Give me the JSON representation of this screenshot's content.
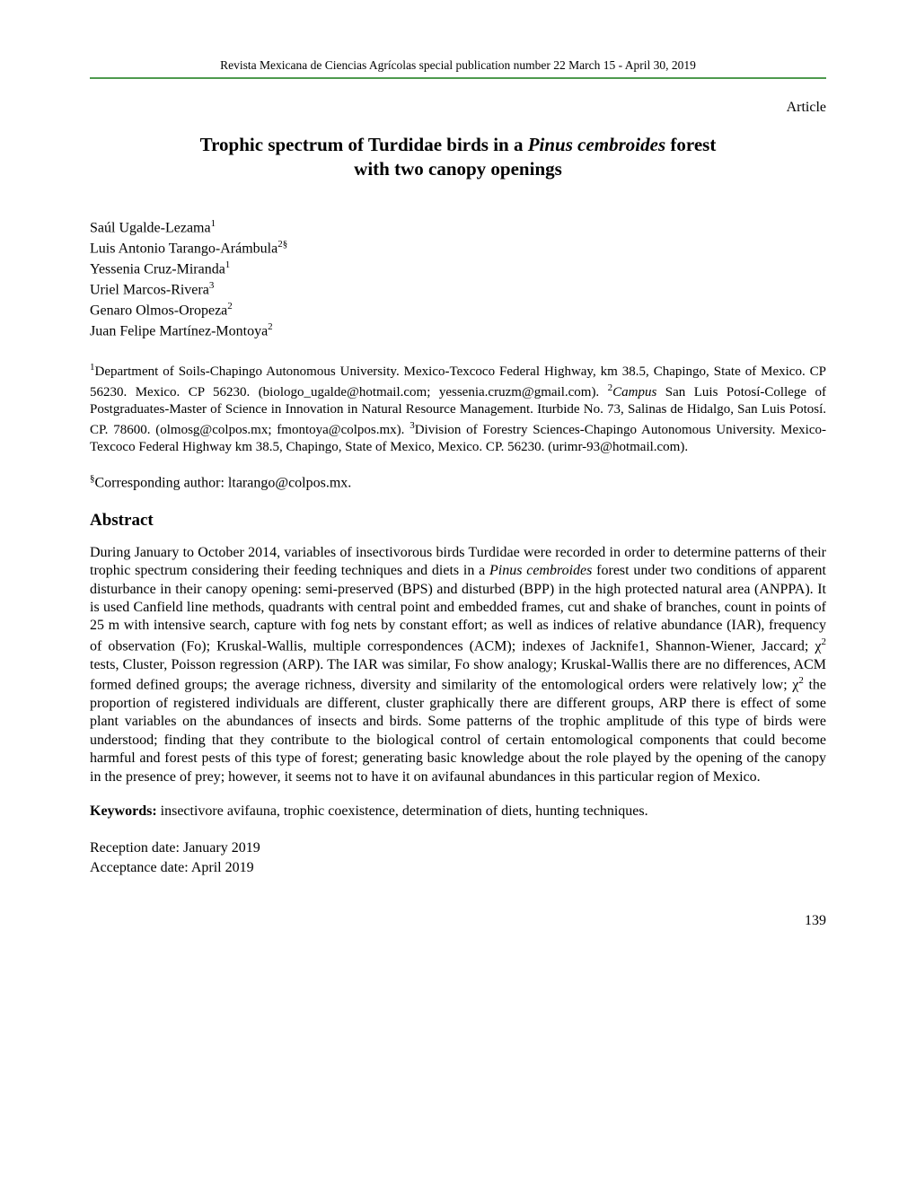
{
  "journal_header": "Revista Mexicana de Ciencias Agrícolas   special publication number 22   March 15 - April 30, 2019",
  "article_type": "Article",
  "title_line1": "Trophic spectrum of Turdidae birds in a ",
  "title_italic": "Pinus cembroides",
  "title_line1b": " forest",
  "title_line2": "with two canopy openings",
  "authors": [
    {
      "name": "Saúl Ugalde-Lezama",
      "sup": "1"
    },
    {
      "name": "Luis Antonio Tarango-Arámbula",
      "sup": "2§"
    },
    {
      "name": "Yessenia Cruz-Miranda",
      "sup": "1"
    },
    {
      "name": "Uriel Marcos-Rivera",
      "sup": "3"
    },
    {
      "name": "Genaro Olmos-Oropeza",
      "sup": "2"
    },
    {
      "name": "Juan Felipe Martínez-Montoya",
      "sup": "2"
    }
  ],
  "aff1_sup": "1",
  "aff1_text": "Department of Soils-Chapingo Autonomous University. Mexico-Texcoco Federal Highway, km 38.5, Chapingo, State of Mexico. CP 56230. Mexico. CP 56230. (biologo_ugalde@hotmail.com; yessenia.cruzm@gmail.com). ",
  "aff2_sup": "2",
  "aff2_italic": "Campus",
  "aff2_text": " San Luis Potosí-College of Postgraduates-Master of Science in Innovation in Natural Resource Management. Iturbide No. 73, Salinas de Hidalgo, San Luis Potosí. CP. 78600. (olmosg@colpos.mx; fmontoya@colpos.mx). ",
  "aff3_sup": "3",
  "aff3_text": "Division of Forestry Sciences-Chapingo Autonomous University. Mexico-Texcoco Federal Highway km 38.5, Chapingo, State of Mexico, Mexico. CP. 56230. (urimr-93@hotmail.com).",
  "corresponding_sup": "§",
  "corresponding_text": "Corresponding author: ltarango@colpos.mx.",
  "abstract_heading": "Abstract",
  "abstract_p1a": "During January to October 2014, variables of insectivorous birds Turdidae were recorded in order to determine patterns of their trophic spectrum considering their feeding techniques and diets in a ",
  "abstract_italic1": "Pinus cembroides",
  "abstract_p1b": " forest under two conditions of apparent disturbance in their canopy opening: semi-preserved (BPS) and disturbed (BPP) in the high protected natural area (ANPPA). It is used Canfield line methods, quadrants with central point and embedded frames, cut and shake of branches, count in points of 25 m with intensive search, capture with fog nets by constant effort; as well as indices of relative abundance (IAR), frequency of observation (Fo); Kruskal-Wallis, multiple correspondences (ACM); indexes of Jacknife1, Shannon-Wiener, Jaccard; χ",
  "abstract_sup1": "2",
  "abstract_p1c": " tests, Cluster, Poisson regression (ARP). The IAR was similar, Fo show analogy; Kruskal-Wallis there are no differences, ACM formed defined groups; the average richness, diversity and similarity of the entomological orders were relatively low; χ",
  "abstract_sup2": "2",
  "abstract_p1d": " the proportion of registered individuals are different, cluster graphically there are different groups, ARP there is effect of some plant variables on the abundances of insects and birds. Some patterns of the trophic amplitude of this type of birds were understood; finding that they contribute to the biological control of certain entomological components that could become harmful and forest pests of this type of forest; generating basic knowledge about the role played by the opening of the canopy in the presence of prey; however, it seems not to have it on avifaunal abundances in this particular region of Mexico.",
  "keywords_label": "Keywords:",
  "keywords_text": " insectivore avifauna, trophic coexistence, determination of diets, hunting techniques.",
  "reception_label": "Reception date: January 2019",
  "acceptance_label": "Acceptance date: April 2019",
  "page_number": "139",
  "colors": {
    "rule": "#4e9a4e",
    "text": "#000000",
    "background": "#ffffff"
  },
  "typography": {
    "body_pt": 16,
    "title_pt": 21,
    "header_pt": 13.5,
    "heading_pt": 19,
    "affil_pt": 15
  }
}
